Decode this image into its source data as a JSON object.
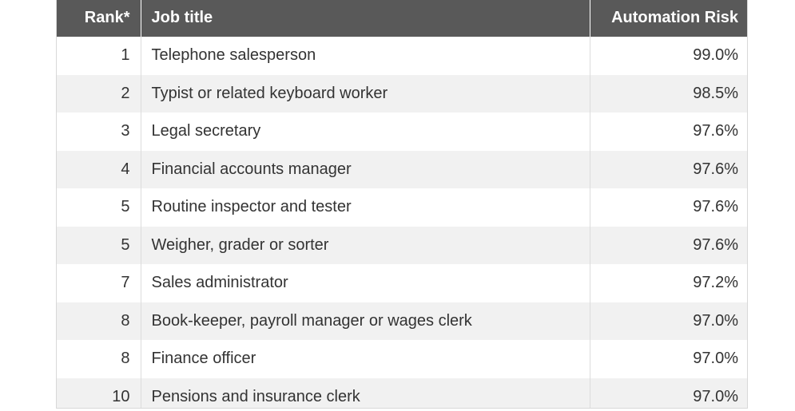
{
  "table": {
    "headers": {
      "rank": "Rank*",
      "job": "Job title",
      "risk": "Automation Risk"
    },
    "rows": [
      {
        "rank": "1",
        "job": "Telephone salesperson",
        "risk": "99.0%"
      },
      {
        "rank": "2",
        "job": "Typist or related keyboard worker",
        "risk": "98.5%"
      },
      {
        "rank": "3",
        "job": "Legal secretary",
        "risk": "97.6%"
      },
      {
        "rank": "4",
        "job": "Financial accounts manager",
        "risk": "97.6%"
      },
      {
        "rank": "5",
        "job": "Routine inspector and tester",
        "risk": "97.6%"
      },
      {
        "rank": "5",
        "job": "Weigher, grader or sorter",
        "risk": "97.6%"
      },
      {
        "rank": "7",
        "job": "Sales administrator",
        "risk": "97.2%"
      },
      {
        "rank": "8",
        "job": "Book-keeper, payroll manager or wages clerk",
        "risk": "97.0%"
      },
      {
        "rank": "8",
        "job": "Finance officer",
        "risk": "97.0%"
      },
      {
        "rank": "10",
        "job": "Pensions and insurance clerk",
        "risk": "97.0%"
      }
    ]
  },
  "colors": {
    "header_bg": "#595959",
    "header_text": "#ffffff",
    "stripe": "#f1f1f1",
    "text": "#333333"
  }
}
